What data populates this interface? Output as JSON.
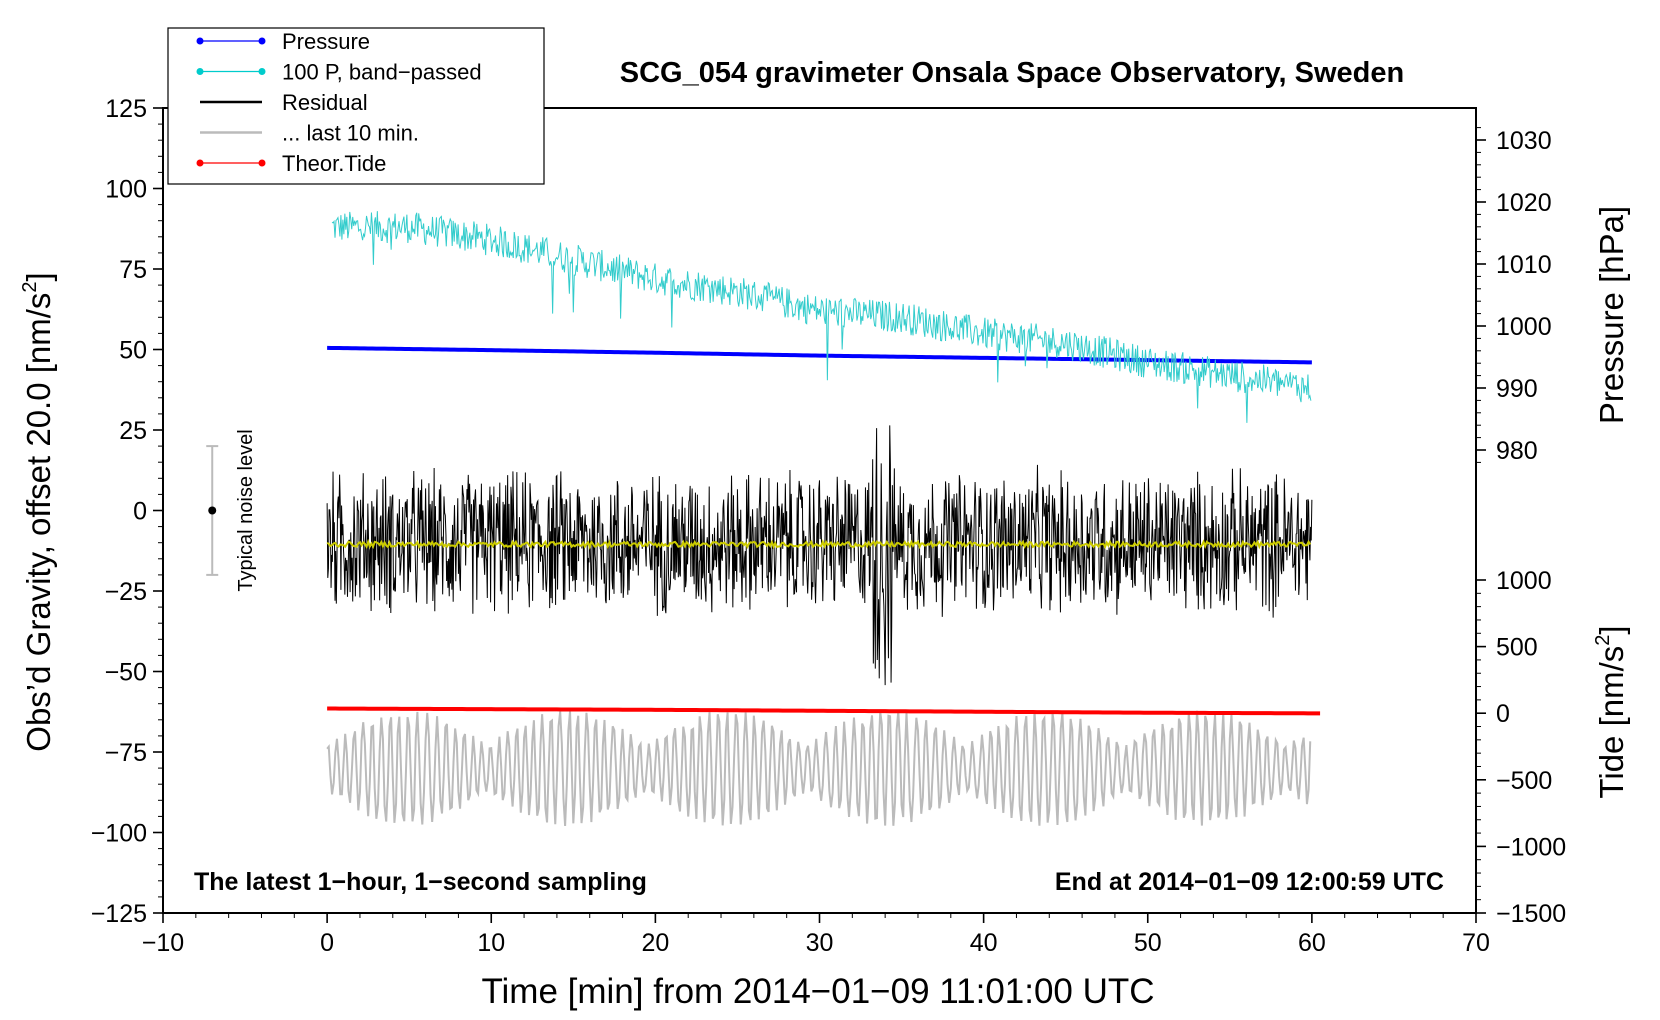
{
  "chart_data": {
    "type": "line",
    "title": "SCG_054 gravimeter Onsala Space Observatory, Sweden",
    "xlabel": "Time [min] from 2014−01−09 11:01:00 UTC",
    "ylabel_left": "Obs’d Gravity, offset 20.0 [nm/s",
    "ylabel_left_sup": "2",
    "ylabel_left_close": "]",
    "ylabel_right_pressure": "Pressure [hPa]",
    "ylabel_right_tide": "Tide [nm/s",
    "ylabel_right_tide_sup": "2",
    "ylabel_right_tide_close": "]",
    "xlim": [
      -10,
      70
    ],
    "ylim_left": [
      -125,
      125
    ],
    "pressure_axis": {
      "ticks": [
        980,
        990,
        1000,
        1010,
        1020,
        1030
      ]
    },
    "tide_axis": {
      "ticks": [
        -1500,
        -1000,
        -500,
        0,
        500,
        1000
      ]
    },
    "x_ticks": [
      -10,
      0,
      10,
      20,
      30,
      40,
      50,
      60,
      70
    ],
    "y_ticks_left": [
      -125,
      -100,
      -75,
      -50,
      -25,
      0,
      25,
      50,
      75,
      100,
      125
    ],
    "x_tick_labels": [
      "−10",
      "0",
      "10",
      "20",
      "30",
      "40",
      "50",
      "60",
      "70"
    ],
    "y_tick_labels_left": [
      "−125",
      "−100",
      "−75",
      "−50",
      "−25",
      "0",
      "25",
      "50",
      "75",
      "100",
      "125"
    ],
    "pressure_tick_labels": [
      "980",
      "990",
      "1000",
      "1010",
      "1020",
      "1030"
    ],
    "tide_tick_labels": [
      "−1500",
      "−1000",
      "−500",
      "0",
      "500",
      "1000"
    ],
    "legend": {
      "position": "top-left",
      "entries": [
        {
          "label": "Pressure",
          "color": "#0000ff",
          "marker": "dot"
        },
        {
          "label": "100 P, band−passed",
          "color": "#00cccc",
          "marker": "dot"
        },
        {
          "label": "Residual",
          "color": "#000000",
          "marker": "none"
        },
        {
          "label": "... last 10 min.",
          "color": "#bbbbbb",
          "marker": "none"
        },
        {
          "label": "Theor.Tide",
          "color": "#ff0000",
          "marker": "dot"
        }
      ]
    },
    "annotations": {
      "bottom_left": "The latest 1−hour, 1−second sampling",
      "bottom_right": "End at 2014−01−09 12:00:59 UTC",
      "noise_label": "Typical noise level",
      "noise_bar": {
        "x": -7,
        "center": 0,
        "low": -20,
        "high": 20
      }
    },
    "series": [
      {
        "name": "Pressure",
        "color": "#0000ff",
        "axis": "left",
        "x": [
          0,
          10,
          20,
          30,
          40,
          50,
          60
        ],
        "values": [
          50.5,
          49.8,
          49.0,
          48.1,
          47.4,
          46.7,
          46.0
        ]
      },
      {
        "name": "100 P, band−passed",
        "color": "#33cccc",
        "axis": "left",
        "x": [
          0,
          5,
          10,
          15,
          20,
          25,
          30,
          35,
          40,
          45,
          50,
          55,
          60
        ],
        "values": [
          88,
          88,
          84,
          78,
          72,
          68,
          62,
          60,
          55,
          52,
          46,
          42,
          38
        ]
      },
      {
        "name": "Residual",
        "color": "#000000",
        "axis": "left",
        "x": [
          0,
          10,
          20,
          30,
          40,
          50,
          60
        ],
        "values": [
          -10,
          -10,
          -10,
          -10,
          -10,
          -10,
          -10
        ],
        "envelope": 25
      },
      {
        "name": "Residual mean",
        "color": "#cccc00",
        "axis": "left",
        "x": [
          0,
          60
        ],
        "values": [
          -10.5,
          -10.5
        ]
      },
      {
        "name": "... last 10 min.",
        "color": "#bbbbbb",
        "axis": "left",
        "x": [
          0,
          60
        ],
        "values": [
          -80,
          -80
        ],
        "envelope": 15
      },
      {
        "name": "Theor.Tide",
        "color": "#ff0000",
        "axis": "left",
        "x": [
          0,
          10,
          20,
          30,
          40,
          50,
          60.5
        ],
        "values": [
          -61.5,
          -61.7,
          -61.9,
          -62.2,
          -62.5,
          -62.8,
          -63.0
        ]
      }
    ]
  }
}
